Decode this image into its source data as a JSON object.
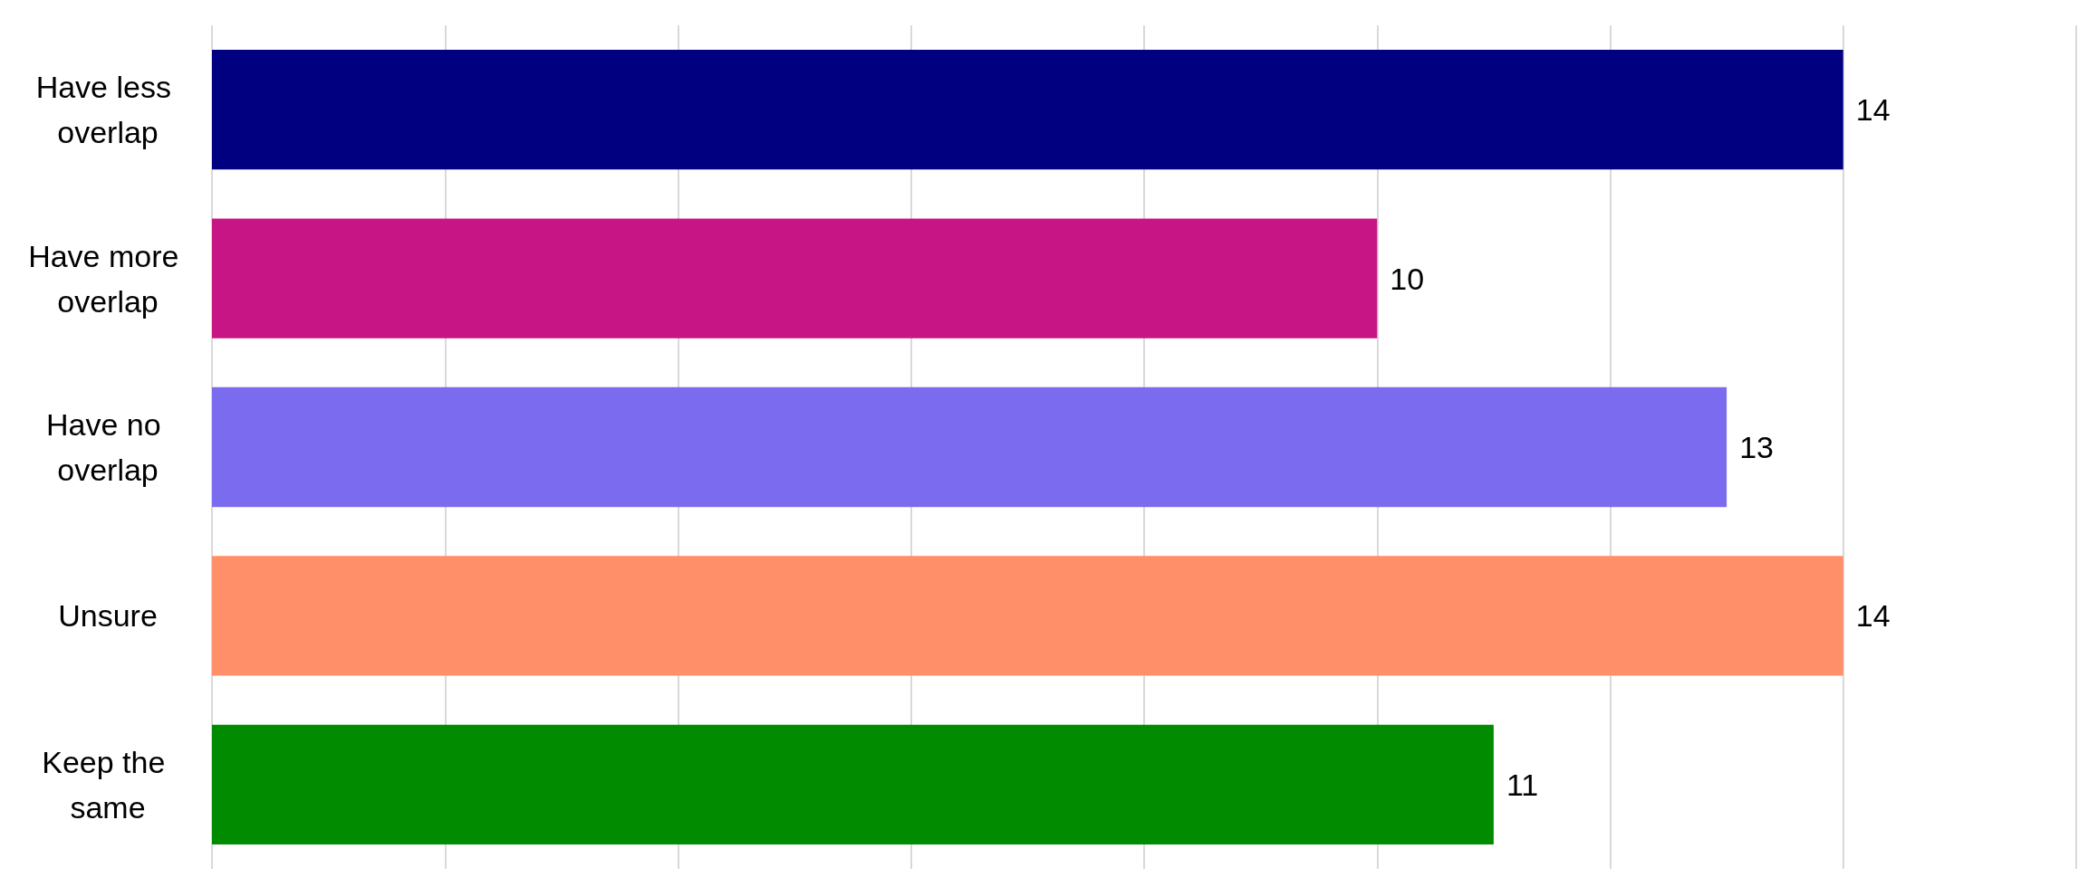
{
  "chart_data": {
    "type": "bar",
    "orientation": "horizontal",
    "categories": [
      "Have less overlap",
      "Have more overlap",
      "Have no overlap",
      "Unsure",
      "Keep the same"
    ],
    "values": [
      14,
      10,
      13,
      14,
      11
    ],
    "colors": [
      "#000080",
      "#c71585",
      "#7b6bee",
      "#ff8f69",
      "#008b00"
    ],
    "xlim": [
      0,
      16
    ],
    "xticks": [
      {
        "value": 0,
        "label": null
      },
      {
        "value": 2,
        "label": null
      },
      {
        "value": 4,
        "label": null
      },
      {
        "value": 6,
        "label": null
      },
      {
        "value": 8,
        "label": null
      },
      {
        "value": 10,
        "label": null
      },
      {
        "value": 12,
        "label": null
      },
      {
        "value": 14,
        "label": null
      },
      {
        "value": 16,
        "label": null
      }
    ],
    "grid": "x",
    "tick_labels": "y",
    "data_labels": true
  }
}
